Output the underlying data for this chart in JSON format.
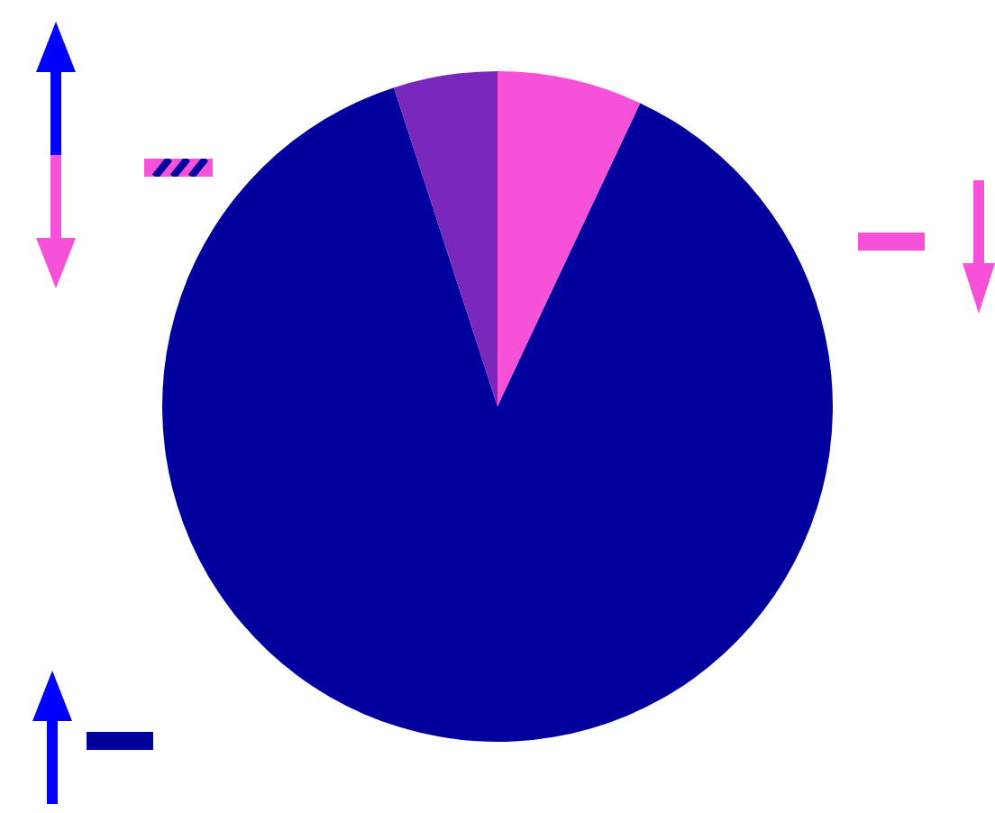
{
  "chart_data": {
    "type": "pie",
    "categories": [
      null,
      null,
      null
    ],
    "values": [
      7,
      88,
      5
    ],
    "colors": [
      "#f750d9",
      "#00009e",
      "#7a28bc"
    ]
  }
}
